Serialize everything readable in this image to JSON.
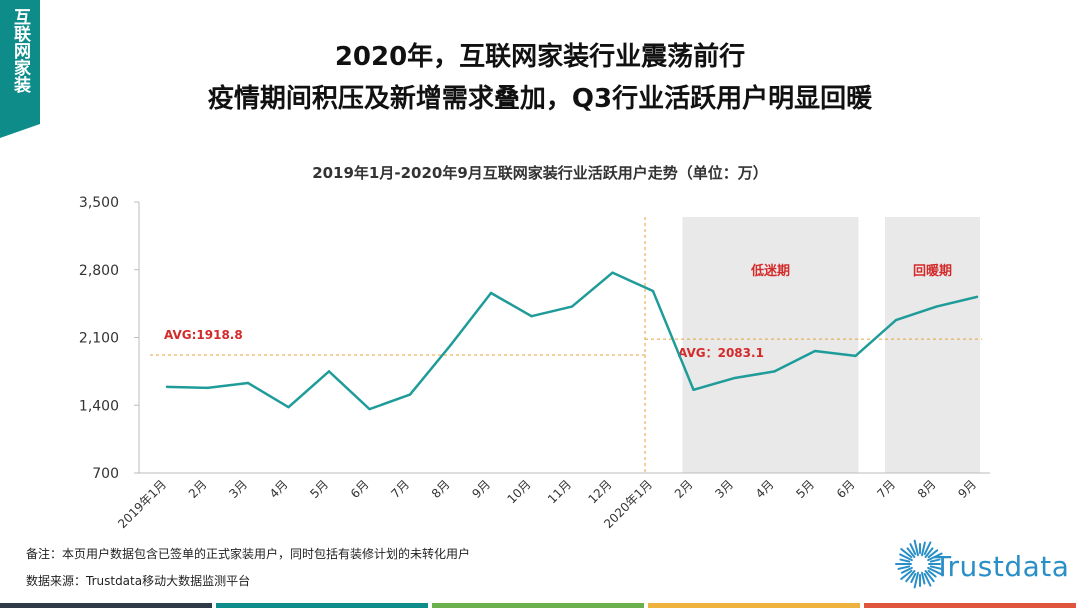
{
  "side_tab": {
    "label": "互联网家装"
  },
  "header": {
    "title_line1": "2020年，互联网家装行业震荡前行",
    "title_line2": "疫情期间积压及新增需求叠加，Q3行业活跃用户明显回暖"
  },
  "chart_data": {
    "type": "line",
    "title": "2019年1月-2020年9月互联网家装行业活跃用户走势（单位：万）",
    "categories": [
      "2019年1月",
      "2月",
      "3月",
      "4月",
      "5月",
      "6月",
      "7月",
      "8月",
      "9月",
      "10月",
      "11月",
      "12月",
      "2020年1月",
      "2月",
      "3月",
      "4月",
      "5月",
      "6月",
      "7月",
      "8月",
      "9月"
    ],
    "series": [
      {
        "values": [
          1590,
          1580,
          1630,
          1380,
          1750,
          1360,
          1510,
          2020,
          2560,
          2320,
          2420,
          2770,
          2580,
          1560,
          1680,
          1750,
          1960,
          1910,
          2280,
          2420,
          2520
        ],
        "color": "#1f9c99"
      }
    ],
    "ylim": [
      700,
      3500
    ],
    "yticks": [
      "700",
      "1,400",
      "2,100",
      "2,800",
      "3,500"
    ],
    "averages": [
      {
        "label": "AVG:1918.8",
        "value": 1918.8,
        "from": 0,
        "to": 12
      },
      {
        "label": "AVG：2083.1",
        "value": 2083.1,
        "from": 12,
        "to": 20
      }
    ],
    "shaded_regions": [
      {
        "label": "低迷期",
        "from": 13,
        "to": 17
      },
      {
        "label": "回暖期",
        "from": 18,
        "to": 20
      }
    ],
    "avg_color": "#e8a33a",
    "label_color": "#d42a2a",
    "shade_color": "#e9e9ea"
  },
  "notes": {
    "remark": "备注：本页用户数据包含已签单的正式家装用户，同时包括有装修计划的未转化用户",
    "source": "数据来源：Trustdata移动大数据监测平台"
  },
  "logo": {
    "text": "Trustdata",
    "icon": "sunburst-logo-icon"
  },
  "bottom_bar_colors": [
    "#2e3a46",
    "#0e8c8a",
    "#6ab04c",
    "#f0b23e",
    "#e0553e"
  ]
}
